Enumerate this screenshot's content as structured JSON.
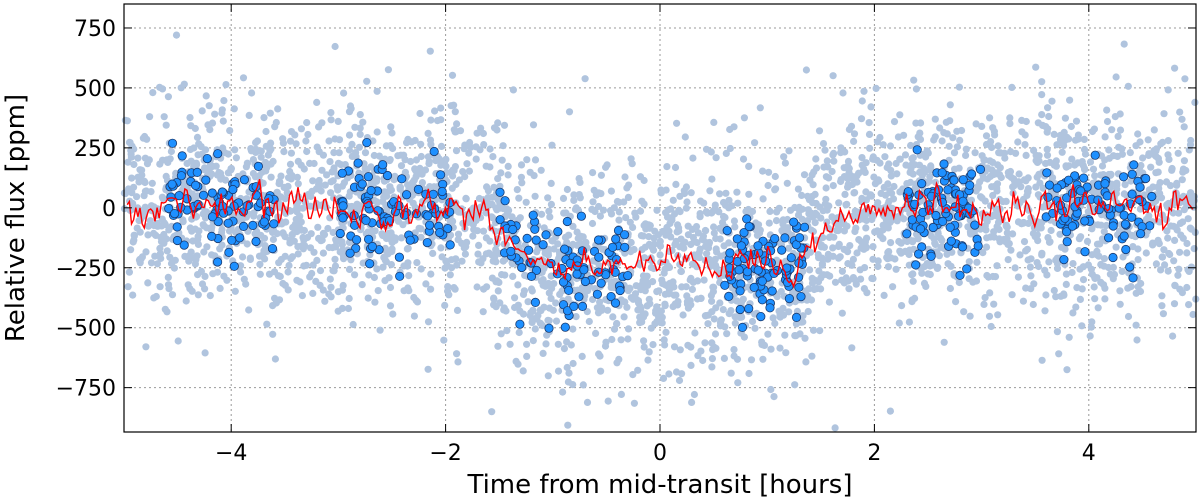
{
  "chart_data": {
    "type": "scatter",
    "xlabel": "Time from mid-transit [hours]",
    "ylabel": "Relative flux [ppm]",
    "xlim": [
      -5,
      5
    ],
    "ylim": [
      -935,
      850
    ],
    "x_ticks": [
      -4,
      -2,
      0,
      2,
      4
    ],
    "x_tick_labels": [
      "−4",
      "−2",
      "0",
      "2",
      "4"
    ],
    "y_ticks": [
      750,
      500,
      250,
      0,
      -250,
      -500,
      -750
    ],
    "y_tick_labels": [
      "750",
      "500",
      "250",
      "0",
      "−250",
      "−500",
      "−750"
    ],
    "grid": true,
    "colors": {
      "unbinned_points": "#b0c4de",
      "binned_points": "#1e90ff",
      "binned_edge": "#1a3a6e",
      "model_line": "#ff0000"
    },
    "transit_model": {
      "t_ingress_start": -1.65,
      "t_ingress_end": -1.15,
      "t_egress_start": 1.25,
      "t_egress_end": 1.7,
      "out_of_transit_flux": 0,
      "in_transit_flux": -250
    },
    "series": [
      {
        "role": "unbinned",
        "n": 3400,
        "noise_sigma": 210
      },
      {
        "role": "binned",
        "segments": [
          {
            "x_start": -4.6,
            "x_end": -3.6,
            "n": 90
          },
          {
            "x_start": -3.0,
            "x_end": -1.95,
            "n": 90
          },
          {
            "x_start": -1.5,
            "x_end": -0.3,
            "n": 90
          },
          {
            "x_start": 0.6,
            "x_end": 1.35,
            "n": 90
          },
          {
            "x_start": 2.3,
            "x_end": 3.0,
            "n": 90
          },
          {
            "x_start": 3.6,
            "x_end": 4.6,
            "n": 90
          }
        ],
        "noise_sigma": 95
      },
      {
        "role": "model",
        "n": 500,
        "noise_sigma": 45
      }
    ]
  }
}
